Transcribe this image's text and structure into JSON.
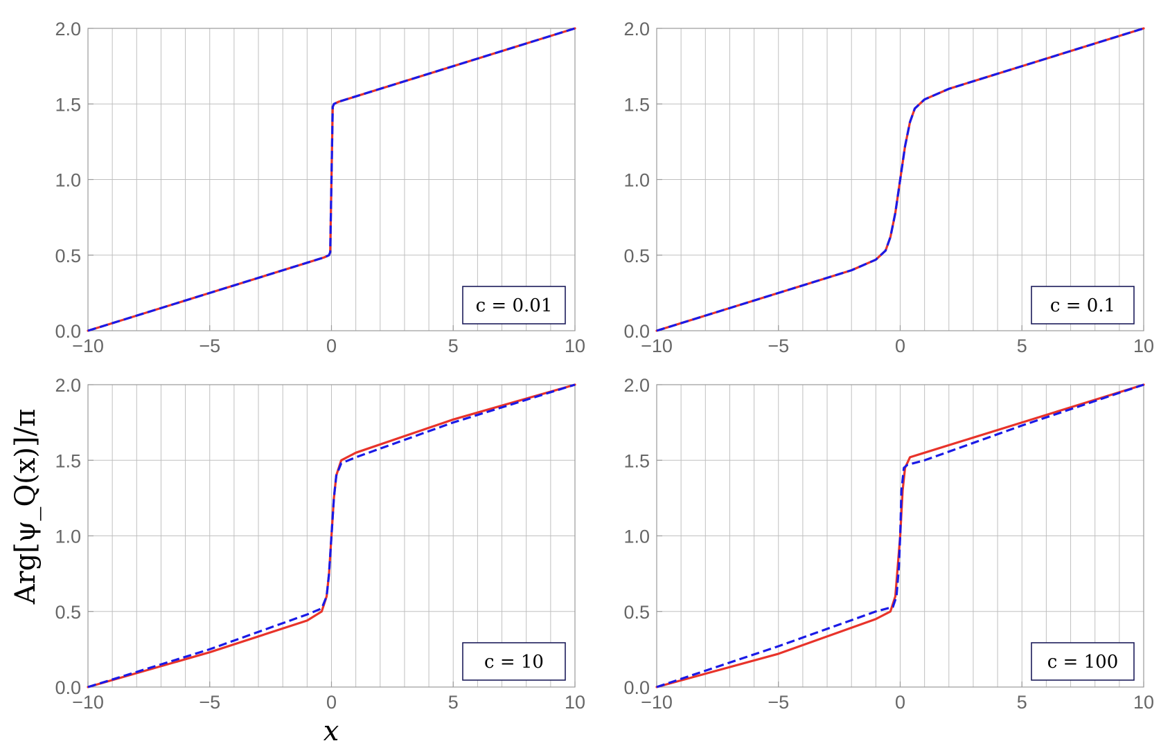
{
  "figure": {
    "ylabel": "Arg[ψ_Q(x)]/π",
    "xlabel": "x"
  },
  "colors": {
    "red_series": "#e8332a",
    "blue_series": "#1a1ae6",
    "grid": "#bfbfbf",
    "frame": "#999999",
    "legend_border": "#1c1c5a",
    "tick_text": "#666666"
  },
  "chart_data": [
    {
      "type": "line",
      "label_text": "c = 0.01",
      "c_value": 0.01,
      "xlim": [
        -10,
        10
      ],
      "ylim": [
        0,
        2
      ],
      "xticks": [
        -10,
        -5,
        0,
        5,
        10
      ],
      "yticks": [
        "0.0",
        "0.5",
        "1.0",
        "1.5",
        "2.0"
      ],
      "grid": true,
      "legend_position": "bottom-right",
      "series": [
        {
          "style": "solid",
          "color": "red",
          "x": [
            -10,
            -5,
            -1,
            -0.3,
            -0.1,
            -0.05,
            0,
            0.05,
            0.1,
            0.3,
            1,
            5,
            10
          ],
          "y": [
            0.0,
            0.25,
            0.45,
            0.485,
            0.5,
            0.52,
            1.0,
            1.48,
            1.5,
            1.515,
            1.55,
            1.75,
            2.0
          ]
        },
        {
          "style": "dashed",
          "color": "blue",
          "x": [
            -10,
            -5,
            -1,
            -0.3,
            -0.1,
            -0.05,
            0,
            0.05,
            0.1,
            0.3,
            1,
            5,
            10
          ],
          "y": [
            0.0,
            0.25,
            0.45,
            0.485,
            0.5,
            0.52,
            1.0,
            1.48,
            1.5,
            1.515,
            1.55,
            1.75,
            2.0
          ]
        }
      ]
    },
    {
      "type": "line",
      "label_text": "c = 0.1",
      "c_value": 0.1,
      "xlim": [
        -10,
        10
      ],
      "ylim": [
        0,
        2
      ],
      "xticks": [
        -10,
        -5,
        0,
        5,
        10
      ],
      "yticks": [
        "0.0",
        "0.5",
        "1.0",
        "1.5",
        "2.0"
      ],
      "grid": true,
      "legend_position": "bottom-right",
      "series": [
        {
          "style": "solid",
          "color": "red",
          "x": [
            -10,
            -5,
            -2,
            -1,
            -0.6,
            -0.4,
            -0.2,
            0,
            0.2,
            0.4,
            0.6,
            1,
            2,
            5,
            10
          ],
          "y": [
            0.0,
            0.25,
            0.4,
            0.47,
            0.53,
            0.62,
            0.78,
            1.0,
            1.22,
            1.38,
            1.47,
            1.53,
            1.6,
            1.75,
            2.0
          ]
        },
        {
          "style": "dashed",
          "color": "blue",
          "x": [
            -10,
            -5,
            -2,
            -1,
            -0.6,
            -0.4,
            -0.2,
            0,
            0.2,
            0.4,
            0.6,
            1,
            2,
            5,
            10
          ],
          "y": [
            0.0,
            0.25,
            0.4,
            0.47,
            0.53,
            0.62,
            0.78,
            1.0,
            1.22,
            1.38,
            1.47,
            1.53,
            1.6,
            1.75,
            2.0
          ]
        }
      ]
    },
    {
      "type": "line",
      "label_text": "c = 10",
      "c_value": 10,
      "xlim": [
        -10,
        10
      ],
      "ylim": [
        0,
        2
      ],
      "xticks": [
        -10,
        -5,
        0,
        5,
        10
      ],
      "yticks": [
        "0.0",
        "0.5",
        "1.0",
        "1.5",
        "2.0"
      ],
      "grid": true,
      "legend_position": "bottom-right",
      "series": [
        {
          "style": "solid",
          "color": "red",
          "x": [
            -10,
            -5,
            -1,
            -0.4,
            -0.2,
            -0.1,
            0,
            0.1,
            0.2,
            0.4,
            1,
            5,
            10
          ],
          "y": [
            0.0,
            0.23,
            0.44,
            0.5,
            0.6,
            0.75,
            1.0,
            1.25,
            1.4,
            1.5,
            1.55,
            1.77,
            2.0
          ]
        },
        {
          "style": "dashed",
          "color": "blue",
          "x": [
            -10,
            -5,
            -1,
            -0.4,
            -0.2,
            -0.1,
            0,
            0.1,
            0.2,
            0.4,
            1,
            5,
            10
          ],
          "y": [
            0.0,
            0.25,
            0.48,
            0.52,
            0.6,
            0.75,
            1.0,
            1.25,
            1.4,
            1.48,
            1.52,
            1.75,
            2.0
          ]
        }
      ]
    },
    {
      "type": "line",
      "label_text": "c = 100",
      "c_value": 100,
      "xlim": [
        -10,
        10
      ],
      "ylim": [
        0,
        2
      ],
      "xticks": [
        -10,
        -5,
        0,
        5,
        10
      ],
      "yticks": [
        "0.0",
        "0.5",
        "1.0",
        "1.5",
        "2.0"
      ],
      "grid": true,
      "legend_position": "bottom-right",
      "series": [
        {
          "style": "solid",
          "color": "red",
          "x": [
            -10,
            -5,
            -1,
            -0.4,
            -0.2,
            -0.1,
            0,
            0.1,
            0.2,
            0.4,
            1,
            5,
            10
          ],
          "y": [
            0.0,
            0.22,
            0.45,
            0.5,
            0.6,
            0.8,
            1.0,
            1.3,
            1.45,
            1.52,
            1.55,
            1.75,
            2.0
          ]
        },
        {
          "style": "dashed",
          "color": "blue",
          "x": [
            -10,
            -5,
            -1,
            -0.3,
            -0.15,
            -0.05,
            0,
            0.05,
            0.15,
            0.3,
            1,
            5,
            10
          ],
          "y": [
            0.0,
            0.27,
            0.5,
            0.53,
            0.6,
            0.8,
            1.0,
            1.3,
            1.45,
            1.47,
            1.5,
            1.73,
            2.0
          ]
        }
      ]
    }
  ]
}
